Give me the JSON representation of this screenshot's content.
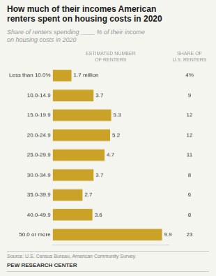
{
  "chart_data": {
    "type": "bar",
    "orientation": "horizontal",
    "title": "How much of their incomes American\nrenters spent on housing costs in 2020",
    "subtitle": "Share of renters spending ____ % of their income\non housing costs in 2020",
    "column_headers": [
      "ESTIMATED NUMBER\nOF RENTERS",
      "SHARE OF\nU.S. RENTERS"
    ],
    "categories": [
      "Less than 10.0%",
      "10.0-14.9",
      "15.0-19.9",
      "20.0-24.9",
      "25.0-29.9",
      "30.0-34.9",
      "35.0-39.9",
      "40.0-49.9",
      "50.0 or more"
    ],
    "values": [
      1.7,
      3.7,
      5.3,
      5.2,
      4.7,
      3.7,
      2.7,
      3.6,
      9.9
    ],
    "value_labels": [
      "1.7 million",
      "3.7",
      "5.3",
      "5.2",
      "4.7",
      "3.7",
      "2.7",
      "3.6",
      "9.9"
    ],
    "data_labels": true,
    "shares": [
      4,
      9,
      12,
      12,
      11,
      8,
      6,
      8,
      23
    ],
    "share_labels": [
      "4%",
      "9",
      "12",
      "12",
      "11",
      "8",
      "6",
      "8",
      "23"
    ],
    "color": "#C9A227",
    "xlim": [
      0,
      10.5
    ],
    "xticks": [],
    "grid": false,
    "tick_labels": "y",
    "source": "Source: U.S. Census Bureau, American Community Survey.",
    "footer": "PEW RESEARCH CENTER"
  }
}
